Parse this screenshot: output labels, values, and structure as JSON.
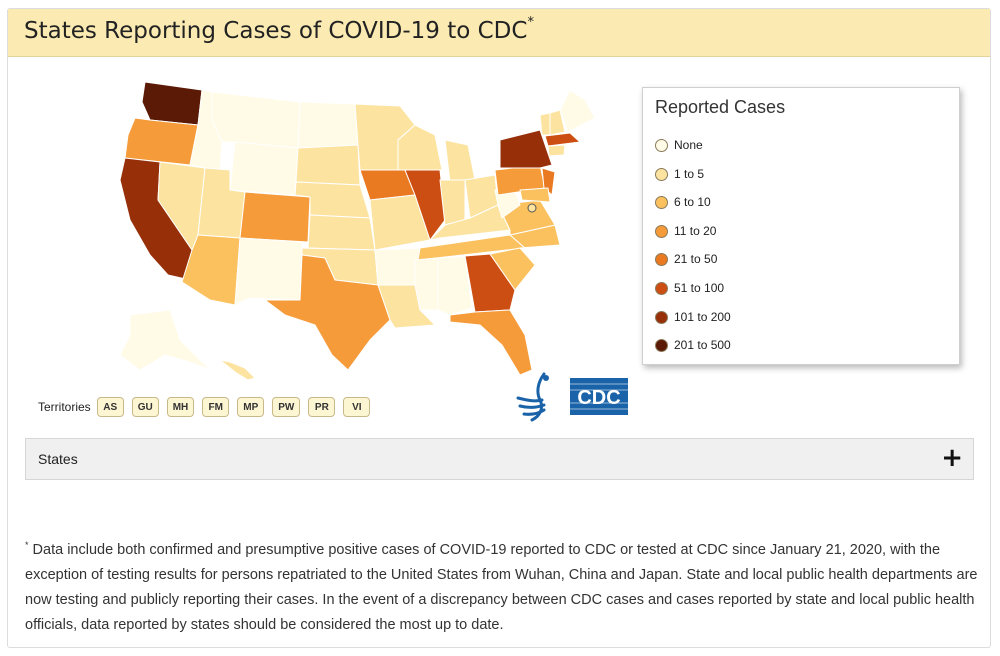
{
  "header": {
    "title": "States Reporting Cases of COVID-19 to CDC",
    "title_marker": "*"
  },
  "legend": {
    "title": "Reported Cases",
    "items": [
      {
        "label": "None",
        "color": "#fffbe6"
      },
      {
        "label": "1 to 5",
        "color": "#fde3a0"
      },
      {
        "label": "6 to 10",
        "color": "#fbc15e"
      },
      {
        "label": "11 to 20",
        "color": "#f59b3a"
      },
      {
        "label": "21 to 50",
        "color": "#ea7a22"
      },
      {
        "label": "51 to 100",
        "color": "#cd4e12"
      },
      {
        "label": "101 to 200",
        "color": "#973009"
      },
      {
        "label": "201 to 500",
        "color": "#5b1a05"
      }
    ]
  },
  "territories": {
    "label": "Territories",
    "buttons": [
      "AS",
      "GU",
      "MH",
      "FM",
      "MP",
      "PW",
      "PR",
      "VI"
    ]
  },
  "logos": {
    "cdc_text": "CDC"
  },
  "accordion": {
    "label": "States",
    "icon": "+"
  },
  "footnote": {
    "marker": "*",
    "text": " Data include both confirmed and presumptive positive cases of COVID-19 reported to CDC or tested at CDC since January 21, 2020, with the exception of testing results for persons repatriated to the United States from Wuhan, China and Japan. State and local public health departments are now testing and publicly reporting their cases. In the event of a discrepancy between CDC cases and cases reported by state and local public health officials, data reported by states should be considered the most up to date."
  },
  "map": {
    "none_color": "#fffbe6",
    "light_color": "#fde3a0",
    "mid_color": "#fbc15e",
    "orange_color": "#f59b3a",
    "dark_orange_color": "#ea7a22",
    "red_color": "#cd4e12",
    "brown_color": "#973009",
    "darkest_color": "#5b1a05"
  }
}
